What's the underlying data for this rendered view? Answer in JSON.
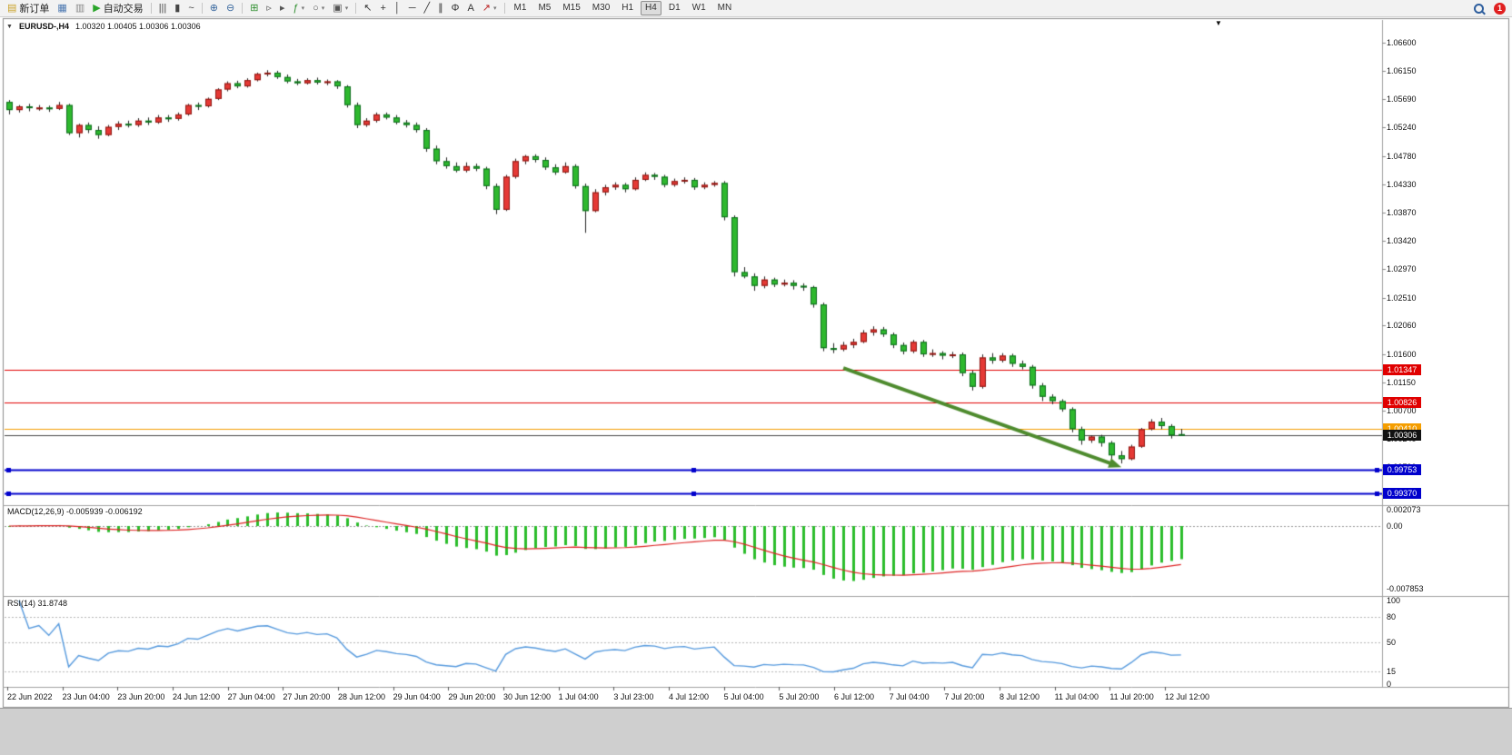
{
  "toolbar": {
    "items": [
      {
        "name": "new-order-button",
        "icon": "▤",
        "icon_color": "#c9a227",
        "icon_name": "new-order-icon",
        "label": "新订单"
      },
      {
        "name": "chart-window-button",
        "icon": "▦",
        "icon_color": "#4a77b0",
        "icon_name": "chart-window-icon"
      },
      {
        "name": "profiles-button",
        "icon": "▥",
        "icon_color": "#8a8a8a",
        "icon_name": "profiles-icon"
      },
      {
        "name": "auto-trading-button",
        "icon": "▶",
        "icon_color": "#2aa52a",
        "icon_name": "auto-trading-icon",
        "label": "自动交易"
      },
      {
        "sep": true
      },
      {
        "name": "bar-chart-type-button",
        "icon": "|||",
        "icon_color": "#444444",
        "icon_name": "bar-chart-icon"
      },
      {
        "name": "candlestick-type-button",
        "icon": "▮",
        "icon_color": "#444444",
        "icon_name": "candlestick-icon"
      },
      {
        "name": "line-chart-type-button",
        "icon": "~",
        "icon_color": "#444444",
        "icon_name": "line-chart-icon"
      },
      {
        "sep": true
      },
      {
        "name": "zoom-in-button",
        "icon": "⊕",
        "icon_color": "#38679e",
        "icon_name": "zoom-in-icon"
      },
      {
        "name": "zoom-out-button",
        "icon": "⊖",
        "icon_color": "#38679e",
        "icon_name": "zoom-out-icon"
      },
      {
        "sep": true
      },
      {
        "name": "tile-windows-button",
        "icon": "⊞",
        "icon_color": "#2f8f2f",
        "icon_name": "tile-windows-icon"
      },
      {
        "name": "chart-shift-button",
        "icon": "▹",
        "icon_color": "#555555",
        "icon_name": "chart-shift-icon"
      },
      {
        "name": "auto-scroll-button",
        "icon": "▸",
        "icon_color": "#555555",
        "icon_name": "auto-scroll-icon"
      },
      {
        "name": "indicators-button",
        "icon": "ƒ",
        "icon_color": "#2f8f2f",
        "icon_name": "indicators-icon",
        "dropdown": true
      },
      {
        "name": "periods-button",
        "icon": "○",
        "icon_color": "#555555",
        "icon_name": "periods-icon",
        "dropdown": true
      },
      {
        "name": "templates-button",
        "icon": "▣",
        "icon_color": "#555555",
        "icon_name": "templates-icon",
        "dropdown": true
      },
      {
        "sep": true
      },
      {
        "name": "cursor-button",
        "icon": "↖",
        "icon_color": "#333333",
        "icon_name": "cursor-icon"
      },
      {
        "name": "crosshair-button",
        "icon": "+",
        "icon_color": "#333333",
        "icon_name": "crosshair-icon"
      },
      {
        "name": "vertical-line-button",
        "icon": "│",
        "icon_color": "#333333",
        "icon_name": "vertical-line-icon"
      },
      {
        "name": "horizontal-line-button",
        "icon": "─",
        "icon_color": "#333333",
        "icon_name": "horizontal-line-icon"
      },
      {
        "name": "trendline-button",
        "icon": "╱",
        "icon_color": "#333333",
        "icon_name": "trendline-icon"
      },
      {
        "name": "channel-button",
        "icon": "∥",
        "icon_color": "#333333",
        "icon_name": "equidistant-channel-icon"
      },
      {
        "name": "fibonacci-button",
        "icon": "Φ",
        "icon_color": "#333333",
        "icon_name": "fibonacci-icon"
      },
      {
        "name": "text-button",
        "icon": "A",
        "icon_color": "#333333",
        "icon_name": "text-label-icon"
      },
      {
        "name": "arrows-button",
        "icon": "↗",
        "icon_color": "#bb2222",
        "icon_name": "arrows-icon",
        "dropdown": true
      },
      {
        "sep": true
      }
    ],
    "timeframes": [
      "M1",
      "M5",
      "M15",
      "M30",
      "H1",
      "H4",
      "D1",
      "W1",
      "MN"
    ],
    "active_timeframe": "H4",
    "notification_count": "1"
  },
  "chart": {
    "header": {
      "symbol": "EURUSD-,H4",
      "ohlc": "1.00320 1.00405 1.00306 1.00306"
    },
    "shift_marker": "▼",
    "price_axis": [
      "1.06600",
      "1.06150",
      "1.05690",
      "1.05240",
      "1.04780",
      "1.04330",
      "1.03870",
      "1.03420",
      "1.02970",
      "1.02510",
      "1.02060",
      "1.01600",
      "1.01150",
      "1.00700",
      "1.00240",
      "0.99790",
      "0.99340"
    ],
    "price_tags": [
      {
        "value": "1.01347",
        "bg": "#e00000",
        "fg": "#ffffff"
      },
      {
        "value": "1.00826",
        "bg": "#e00000",
        "fg": "#ffffff"
      },
      {
        "value": "1.00410",
        "bg": "#f59e00",
        "fg": "#ffffff"
      },
      {
        "value": "1.00306",
        "bg": "#111111",
        "fg": "#ffffff"
      },
      {
        "value": "0.99753",
        "bg": "#0000cc",
        "fg": "#ffffff"
      },
      {
        "value": "0.99370",
        "bg": "#0000cc",
        "fg": "#ffffff"
      }
    ],
    "hlines": [
      {
        "price": 1.01347,
        "color": "#e00000",
        "width": 1
      },
      {
        "price": 1.00826,
        "color": "#e00000",
        "width": 1
      },
      {
        "price": 1.0041,
        "color": "#f59e00",
        "width": 1
      },
      {
        "price": 1.00306,
        "color": "#444444",
        "width": 1
      },
      {
        "price": 0.99753,
        "color": "#0000cc",
        "width": 2,
        "handles": true
      },
      {
        "price": 0.9937,
        "color": "#0000cc",
        "width": 2,
        "handles": true
      }
    ],
    "arrow": {
      "from_index": 84,
      "from_price": 1.0138,
      "to_index": 112,
      "to_price": 0.9979,
      "color": "#4e8b2e"
    },
    "time_axis": [
      "22 Jun 2022",
      "23 Jun 04:00",
      "23 Jun 20:00",
      "24 Jun 12:00",
      "27 Jun 04:00",
      "27 Jun 20:00",
      "28 Jun 12:00",
      "29 Jun 04:00",
      "29 Jun 20:00",
      "30 Jun 12:00",
      "1 Jul 04:00",
      "3 Jul 23:00",
      "4 Jul 12:00",
      "5 Jul 04:00",
      "5 Jul 20:00",
      "6 Jul 12:00",
      "7 Jul 04:00",
      "7 Jul 20:00",
      "8 Jul 12:00",
      "11 Jul 04:00",
      "11 Jul 20:00",
      "12 Jul 12:00"
    ]
  },
  "macd": {
    "label": "MACD(12,26,9) -0.005939 -0.006192",
    "axis": [
      "0.002073",
      "0.00",
      "-0.007853"
    ],
    "hist_color": "#2bbd2b",
    "signal_color": "#dd2222"
  },
  "rsi": {
    "label": "RSI(14) 31.8748",
    "axis": [
      "100",
      "80",
      "50",
      "15",
      "0"
    ],
    "levels": [
      80,
      50,
      15
    ],
    "line_color": "#5599dd"
  },
  "chart_data": {
    "type": "candlestick",
    "title": "EURUSD-,H4",
    "up_color": "#e53935",
    "down_color": "#2eb82e",
    "ylim": [
      0.9922,
      1.0697
    ],
    "ohlc": [
      [
        1.0565,
        1.0568,
        1.0545,
        1.0552
      ],
      [
        1.0552,
        1.056,
        1.0548,
        1.0558
      ],
      [
        1.0558,
        1.0562,
        1.055,
        1.0555
      ],
      [
        1.0555,
        1.056,
        1.0551,
        1.0556
      ],
      [
        1.0556,
        1.0559,
        1.0549,
        1.0554
      ],
      [
        1.0554,
        1.0565,
        1.0552,
        1.056
      ],
      [
        1.056,
        1.0562,
        1.0512,
        1.0515
      ],
      [
        1.0515,
        1.053,
        1.0508,
        1.0528
      ],
      [
        1.0528,
        1.0532,
        1.0515,
        1.052
      ],
      [
        1.052,
        1.0526,
        1.0506,
        1.0512
      ],
      [
        1.0512,
        1.0528,
        1.051,
        1.0525
      ],
      [
        1.0525,
        1.0534,
        1.052,
        1.053
      ],
      [
        1.053,
        1.0535,
        1.0524,
        1.0528
      ],
      [
        1.0528,
        1.0539,
        1.0525,
        1.0535
      ],
      [
        1.0535,
        1.054,
        1.0528,
        1.0532
      ],
      [
        1.0532,
        1.0544,
        1.053,
        1.054
      ],
      [
        1.054,
        1.0544,
        1.0533,
        1.0538
      ],
      [
        1.0538,
        1.0548,
        1.0535,
        1.0545
      ],
      [
        1.0545,
        1.0562,
        1.0543,
        1.056
      ],
      [
        1.056,
        1.0564,
        1.0552,
        1.0558
      ],
      [
        1.0558,
        1.0572,
        1.0556,
        1.057
      ],
      [
        1.057,
        1.0587,
        1.0568,
        1.0585
      ],
      [
        1.0585,
        1.0598,
        1.0582,
        1.0595
      ],
      [
        1.0595,
        1.0599,
        1.0587,
        1.059
      ],
      [
        1.059,
        1.0603,
        1.0588,
        1.06
      ],
      [
        1.06,
        1.0612,
        1.0598,
        1.061
      ],
      [
        1.061,
        1.0616,
        1.0606,
        1.0612
      ],
      [
        1.0612,
        1.0615,
        1.0602,
        1.0605
      ],
      [
        1.0605,
        1.0609,
        1.0595,
        1.0598
      ],
      [
        1.0598,
        1.0602,
        1.0592,
        1.0595
      ],
      [
        1.0595,
        1.0603,
        1.0593,
        1.06
      ],
      [
        1.06,
        1.0604,
        1.0593,
        1.0596
      ],
      [
        1.0596,
        1.0601,
        1.0592,
        1.0598
      ],
      [
        1.0598,
        1.06,
        1.0586,
        1.059
      ],
      [
        1.059,
        1.0592,
        1.0556,
        1.056
      ],
      [
        1.056,
        1.0564,
        1.0523,
        1.0528
      ],
      [
        1.0528,
        1.0539,
        1.0525,
        1.0535
      ],
      [
        1.0535,
        1.0548,
        1.0532,
        1.0545
      ],
      [
        1.0545,
        1.0548,
        1.0537,
        1.054
      ],
      [
        1.054,
        1.0544,
        1.0529,
        1.0532
      ],
      [
        1.0532,
        1.0536,
        1.0524,
        1.0528
      ],
      [
        1.0528,
        1.0532,
        1.0516,
        1.052
      ],
      [
        1.052,
        1.0523,
        1.0485,
        1.049
      ],
      [
        1.049,
        1.0495,
        1.0465,
        1.047
      ],
      [
        1.047,
        1.0476,
        1.0458,
        1.0462
      ],
      [
        1.0462,
        1.0468,
        1.0452,
        1.0455
      ],
      [
        1.0455,
        1.0468,
        1.0452,
        1.0462
      ],
      [
        1.0462,
        1.0466,
        1.0454,
        1.0458
      ],
      [
        1.0458,
        1.0461,
        1.0425,
        1.043
      ],
      [
        1.043,
        1.0434,
        1.0385,
        1.0392
      ],
      [
        1.0392,
        1.0448,
        1.039,
        1.0445
      ],
      [
        1.0445,
        1.0474,
        1.0442,
        1.047
      ],
      [
        1.047,
        1.048,
        1.0465,
        1.0478
      ],
      [
        1.0478,
        1.0481,
        1.0468,
        1.0472
      ],
      [
        1.0472,
        1.0476,
        1.0456,
        1.046
      ],
      [
        1.046,
        1.0465,
        1.0448,
        1.0452
      ],
      [
        1.0452,
        1.0468,
        1.045,
        1.0462
      ],
      [
        1.0462,
        1.0465,
        1.0426,
        1.043
      ],
      [
        1.043,
        1.0434,
        1.0355,
        1.039
      ],
      [
        1.039,
        1.0425,
        1.0388,
        1.042
      ],
      [
        1.042,
        1.0432,
        1.0415,
        1.0428
      ],
      [
        1.0428,
        1.0436,
        1.0424,
        1.0432
      ],
      [
        1.0432,
        1.0435,
        1.042,
        1.0425
      ],
      [
        1.0425,
        1.0444,
        1.0423,
        1.044
      ],
      [
        1.044,
        1.0452,
        1.0438,
        1.0448
      ],
      [
        1.0448,
        1.0451,
        1.044,
        1.0445
      ],
      [
        1.0445,
        1.0448,
        1.0428,
        1.0432
      ],
      [
        1.0432,
        1.0442,
        1.0429,
        1.0438
      ],
      [
        1.0438,
        1.0444,
        1.0434,
        1.044
      ],
      [
        1.044,
        1.0443,
        1.0424,
        1.0428
      ],
      [
        1.0428,
        1.0436,
        1.0425,
        1.0432
      ],
      [
        1.0432,
        1.0438,
        1.0429,
        1.0435
      ],
      [
        1.0435,
        1.0438,
        1.0375,
        1.038
      ],
      [
        1.038,
        1.0383,
        1.0285,
        1.0292
      ],
      [
        1.0292,
        1.03,
        1.0282,
        1.0285
      ],
      [
        1.0285,
        1.029,
        1.0262,
        1.027
      ],
      [
        1.027,
        1.0285,
        1.0266,
        1.028
      ],
      [
        1.028,
        1.0283,
        1.0268,
        1.0272
      ],
      [
        1.0272,
        1.028,
        1.0269,
        1.0275
      ],
      [
        1.0275,
        1.0279,
        1.0264,
        1.027
      ],
      [
        1.027,
        1.0274,
        1.0262,
        1.0268
      ],
      [
        1.0268,
        1.027,
        1.0235,
        1.024
      ],
      [
        1.024,
        1.0243,
        1.0165,
        1.017
      ],
      [
        1.017,
        1.0178,
        1.0162,
        1.0168
      ],
      [
        1.0168,
        1.018,
        1.0165,
        1.0175
      ],
      [
        1.0175,
        1.0185,
        1.017,
        1.018
      ],
      [
        1.018,
        1.0199,
        1.0178,
        1.0195
      ],
      [
        1.0195,
        1.0205,
        1.019,
        1.02
      ],
      [
        1.02,
        1.0204,
        1.0188,
        1.0192
      ],
      [
        1.0192,
        1.0195,
        1.017,
        1.0175
      ],
      [
        1.0175,
        1.0179,
        1.016,
        1.0165
      ],
      [
        1.0165,
        1.0183,
        1.0162,
        1.018
      ],
      [
        1.018,
        1.0183,
        1.0156,
        1.016
      ],
      [
        1.016,
        1.0168,
        1.0156,
        1.0162
      ],
      [
        1.0162,
        1.0165,
        1.0152,
        1.0158
      ],
      [
        1.0158,
        1.0164,
        1.0154,
        1.016
      ],
      [
        1.016,
        1.0163,
        1.0125,
        1.013
      ],
      [
        1.013,
        1.0134,
        1.0102,
        1.0108
      ],
      [
        1.0108,
        1.016,
        1.0105,
        1.0155
      ],
      [
        1.0155,
        1.0162,
        1.0145,
        1.015
      ],
      [
        1.015,
        1.0162,
        1.0147,
        1.0158
      ],
      [
        1.0158,
        1.0161,
        1.014,
        1.0145
      ],
      [
        1.0145,
        1.015,
        1.0136,
        1.014
      ],
      [
        1.014,
        1.0143,
        1.0105,
        1.011
      ],
      [
        1.011,
        1.0114,
        1.0085,
        1.0092
      ],
      [
        1.0092,
        1.0096,
        1.008,
        1.0085
      ],
      [
        1.0085,
        1.0088,
        1.0068,
        1.0072
      ],
      [
        1.0072,
        1.0075,
        1.0035,
        1.004
      ],
      [
        1.004,
        1.0044,
        1.0015,
        1.0022
      ],
      [
        1.0022,
        1.003,
        1.0018,
        1.0028
      ],
      [
        1.0028,
        1.0031,
        1.0012,
        1.0018
      ],
      [
        1.0018,
        1.0021,
        0.9992,
        0.9998
      ],
      [
        0.9998,
        1.0005,
        0.9985,
        0.9992
      ],
      [
        0.9992,
        1.0015,
        0.999,
        1.0012
      ],
      [
        1.0012,
        1.0042,
        1.001,
        1.004
      ],
      [
        1.004,
        1.0056,
        1.0038,
        1.0052
      ],
      [
        1.0052,
        1.0058,
        1.004,
        1.0045
      ],
      [
        1.0045,
        1.0048,
        1.0025,
        1.003
      ],
      [
        1.0032,
        1.00405,
        1.00306,
        1.00306
      ]
    ],
    "indicators": [
      {
        "type": "macd",
        "fast": 12,
        "slow": 26,
        "signal": 9,
        "last_macd": -0.005939,
        "last_signal": -0.006192,
        "ylim": [
          -0.00835,
          0.00225
        ]
      },
      {
        "type": "rsi",
        "period": 14,
        "last_value": 31.8748,
        "ylim": [
          0,
          100
        ],
        "levels": [
          80,
          50,
          15
        ]
      }
    ]
  }
}
